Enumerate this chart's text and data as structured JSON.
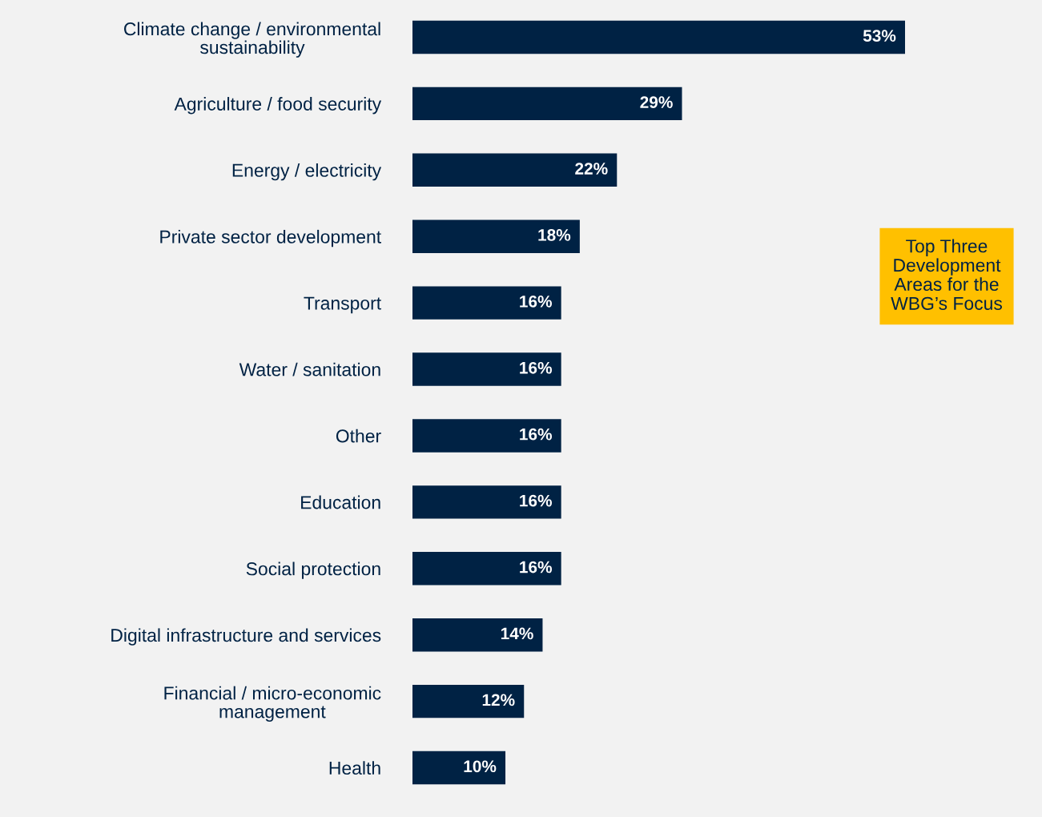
{
  "chart_data": {
    "type": "bar",
    "orientation": "horizontal",
    "categories": [
      "Climate change / environmental\nsustainability",
      "Agriculture / food security",
      "Energy / electricity",
      "Private sector development",
      "Transport",
      "Water / sanitation",
      "Other",
      "Education",
      "Social protection",
      "Digital infrastructure and services",
      "Financial / micro-economic\nmanagement",
      "Health"
    ],
    "series": [
      {
        "color": "#002244",
        "values": [
          53,
          29,
          22,
          18,
          16,
          16,
          16,
          16,
          16,
          14,
          12,
          10
        ],
        "value_labels": [
          "53%",
          "29%",
          "22%",
          "18%",
          "16%",
          "16%",
          "16%",
          "16%",
          "16%",
          "14%",
          "12%",
          "10%"
        ]
      }
    ],
    "annotations": [
      "Top Three\nDevelopment\nAreas for the\nWBG’s Focus"
    ],
    "grid": false,
    "legend": false
  }
}
